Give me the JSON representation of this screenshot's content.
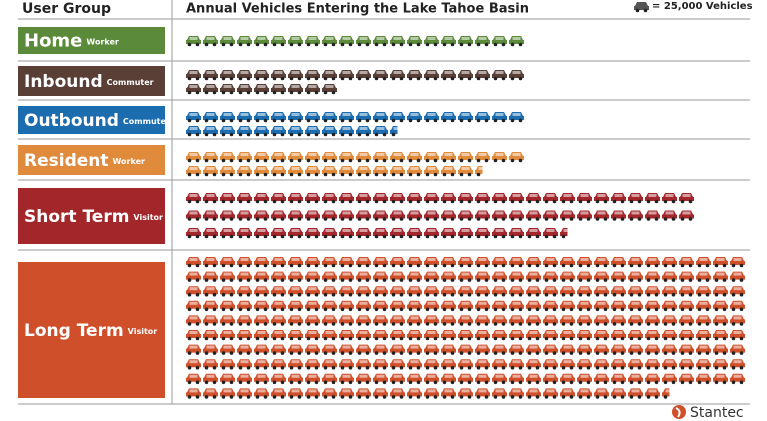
{
  "header": {
    "group_label": "User Group"
  },
  "chart_data": {
    "type": "pictogram",
    "title": "Annual Vehicles Entering the Lake Tahoe Basin",
    "unit": {
      "value": 25000,
      "label": "= 25,000 Vehicles"
    },
    "categories": [
      "Home",
      "Inbound",
      "Outbound",
      "Resident",
      "Short Term",
      "Long Term"
    ],
    "category_subtitles": [
      "Worker",
      "Commuter",
      "Commuter",
      "Worker",
      "Visitor",
      "Visitor"
    ],
    "values": [
      500000,
      725000,
      812500,
      937500,
      2062500,
      8137500
    ],
    "colors": [
      "#5b8a3a",
      "#5a3f36",
      "#1b6db0",
      "#e08b3c",
      "#a3272a",
      "#cf4f2b"
    ]
  },
  "footer": {
    "brand": "Stantec"
  }
}
